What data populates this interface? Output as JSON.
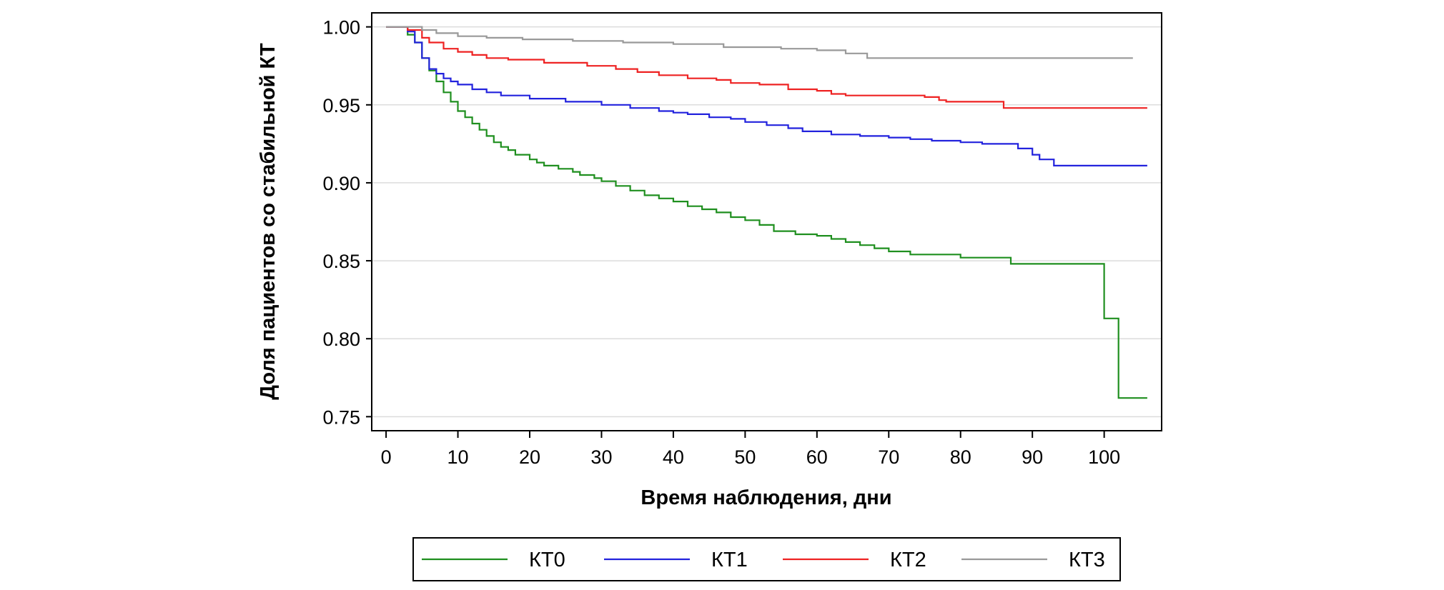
{
  "chart_data": {
    "type": "line",
    "step": true,
    "xlabel": "Время наблюдения, дни",
    "ylabel": "Доля пациентов со стабильной КТ",
    "xlim": [
      -2,
      108
    ],
    "ylim": [
      0.741,
      1.009
    ],
    "x_ticks": [
      "0",
      "10",
      "20",
      "30",
      "40",
      "50",
      "60",
      "70",
      "80",
      "90",
      "100"
    ],
    "y_ticks": [
      "1.00",
      "0.95",
      "0.90",
      "0.85",
      "0.80",
      "0.75"
    ],
    "grid": "horizontal",
    "legend": "bottom, outside",
    "series": [
      {
        "name": "КТ0",
        "color": "#1f8f1f",
        "points": [
          [
            0,
            1.0
          ],
          [
            3,
            0.995
          ],
          [
            4,
            0.99
          ],
          [
            5,
            0.98
          ],
          [
            6,
            0.972
          ],
          [
            7,
            0.965
          ],
          [
            8,
            0.958
          ],
          [
            9,
            0.952
          ],
          [
            10,
            0.946
          ],
          [
            11,
            0.942
          ],
          [
            12,
            0.938
          ],
          [
            13,
            0.934
          ],
          [
            14,
            0.93
          ],
          [
            15,
            0.926
          ],
          [
            16,
            0.923
          ],
          [
            17,
            0.921
          ],
          [
            18,
            0.918
          ],
          [
            20,
            0.915
          ],
          [
            21,
            0.913
          ],
          [
            22,
            0.911
          ],
          [
            24,
            0.909
          ],
          [
            26,
            0.907
          ],
          [
            27,
            0.905
          ],
          [
            29,
            0.903
          ],
          [
            30,
            0.901
          ],
          [
            32,
            0.898
          ],
          [
            34,
            0.895
          ],
          [
            36,
            0.892
          ],
          [
            38,
            0.89
          ],
          [
            40,
            0.888
          ],
          [
            42,
            0.885
          ],
          [
            44,
            0.883
          ],
          [
            46,
            0.881
          ],
          [
            48,
            0.878
          ],
          [
            50,
            0.876
          ],
          [
            52,
            0.873
          ],
          [
            54,
            0.869
          ],
          [
            57,
            0.867
          ],
          [
            60,
            0.866
          ],
          [
            62,
            0.864
          ],
          [
            64,
            0.862
          ],
          [
            66,
            0.86
          ],
          [
            68,
            0.858
          ],
          [
            70,
            0.856
          ],
          [
            73,
            0.854
          ],
          [
            80,
            0.852
          ],
          [
            87,
            0.848
          ],
          [
            100,
            0.813
          ],
          [
            102,
            0.762
          ],
          [
            106,
            0.762
          ]
        ]
      },
      {
        "name": "КТ1",
        "color": "#2222dd",
        "points": [
          [
            0,
            1.0
          ],
          [
            3,
            0.997
          ],
          [
            4,
            0.99
          ],
          [
            5,
            0.98
          ],
          [
            6,
            0.973
          ],
          [
            7,
            0.97
          ],
          [
            8,
            0.967
          ],
          [
            9,
            0.965
          ],
          [
            10,
            0.963
          ],
          [
            12,
            0.96
          ],
          [
            14,
            0.958
          ],
          [
            16,
            0.956
          ],
          [
            20,
            0.954
          ],
          [
            25,
            0.952
          ],
          [
            30,
            0.95
          ],
          [
            34,
            0.948
          ],
          [
            38,
            0.946
          ],
          [
            40,
            0.945
          ],
          [
            42,
            0.944
          ],
          [
            45,
            0.942
          ],
          [
            48,
            0.941
          ],
          [
            50,
            0.939
          ],
          [
            53,
            0.937
          ],
          [
            56,
            0.935
          ],
          [
            58,
            0.933
          ],
          [
            62,
            0.931
          ],
          [
            66,
            0.93
          ],
          [
            70,
            0.929
          ],
          [
            73,
            0.928
          ],
          [
            76,
            0.927
          ],
          [
            80,
            0.926
          ],
          [
            83,
            0.925
          ],
          [
            88,
            0.922
          ],
          [
            90,
            0.918
          ],
          [
            91,
            0.915
          ],
          [
            93,
            0.911
          ],
          [
            106,
            0.911
          ]
        ]
      },
      {
        "name": "КТ2",
        "color": "#ee2222",
        "points": [
          [
            0,
            1.0
          ],
          [
            3,
            0.998
          ],
          [
            5,
            0.993
          ],
          [
            6,
            0.99
          ],
          [
            8,
            0.986
          ],
          [
            10,
            0.984
          ],
          [
            12,
            0.982
          ],
          [
            14,
            0.98
          ],
          [
            17,
            0.979
          ],
          [
            22,
            0.977
          ],
          [
            28,
            0.975
          ],
          [
            32,
            0.973
          ],
          [
            35,
            0.971
          ],
          [
            38,
            0.969
          ],
          [
            42,
            0.967
          ],
          [
            46,
            0.966
          ],
          [
            48,
            0.964
          ],
          [
            52,
            0.963
          ],
          [
            56,
            0.96
          ],
          [
            60,
            0.959
          ],
          [
            62,
            0.957
          ],
          [
            64,
            0.956
          ],
          [
            66,
            0.956
          ],
          [
            75,
            0.955
          ],
          [
            77,
            0.953
          ],
          [
            78,
            0.952
          ],
          [
            86,
            0.948
          ],
          [
            106,
            0.948
          ]
        ]
      },
      {
        "name": "КТ3",
        "color": "#999999",
        "points": [
          [
            0,
            1.0
          ],
          [
            5,
            0.998
          ],
          [
            7,
            0.996
          ],
          [
            10,
            0.994
          ],
          [
            14,
            0.993
          ],
          [
            19,
            0.992
          ],
          [
            26,
            0.991
          ],
          [
            33,
            0.99
          ],
          [
            40,
            0.989
          ],
          [
            47,
            0.987
          ],
          [
            55,
            0.986
          ],
          [
            60,
            0.985
          ],
          [
            64,
            0.983
          ],
          [
            67,
            0.98
          ],
          [
            104,
            0.98
          ]
        ]
      }
    ]
  }
}
